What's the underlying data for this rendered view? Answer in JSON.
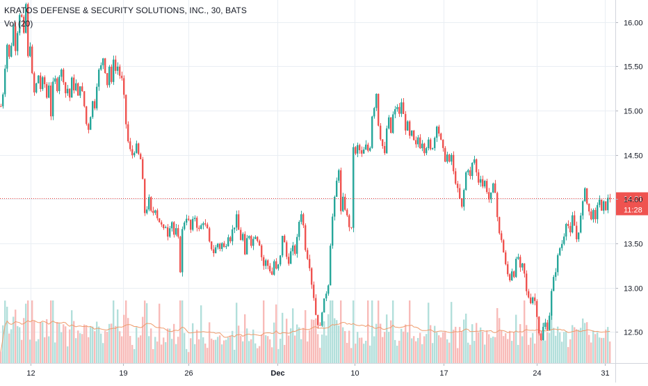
{
  "header": {
    "title": "KRATOS DEFENSE & SECURITY SOLUTIONS, INC., 30, BATS",
    "volume_label": "Vol (20)"
  },
  "colors": {
    "up": "#26a69a",
    "down": "#ef5350",
    "up_volume": "#b2dfdb",
    "down_volume": "#f8bbb9",
    "volume_ma": "#ef9a6a",
    "grid": "#e9eef3",
    "price_line": "#e53935"
  },
  "chart_data": {
    "type": "candlestick",
    "interval": "30",
    "price_axis": {
      "ticks": [
        "16.00",
        "15.50",
        "15.00",
        "14.50",
        "14.00",
        "13.50",
        "13.00",
        "12.50"
      ],
      "range": [
        12.15,
        16.25
      ]
    },
    "x_axis": {
      "ticks": [
        "12",
        "19",
        "26",
        "Dec",
        "10",
        "17",
        "24",
        "31"
      ]
    },
    "last_price": {
      "value": 14.01,
      "label": "14.01",
      "countdown": "11:28"
    },
    "grid": true,
    "legend_placement": "top-left",
    "volume": {
      "ma_period": 20,
      "relative_scale": true
    },
    "price_path": [
      [
        0,
        15.05
      ],
      [
        3,
        15.2
      ],
      [
        6,
        15.5
      ],
      [
        9,
        15.75
      ],
      [
        12,
        15.6
      ],
      [
        15,
        15.75
      ],
      [
        18,
        15.95
      ],
      [
        21,
        15.7
      ],
      [
        24,
        15.9
      ],
      [
        27,
        16.1
      ],
      [
        30,
        16.05
      ],
      [
        33,
        15.85
      ],
      [
        36,
        16.2
      ],
      [
        39,
        15.6
      ],
      [
        42,
        15.75
      ],
      [
        45,
        15.4
      ],
      [
        48,
        15.2
      ],
      [
        51,
        15.3
      ],
      [
        54,
        15.4
      ],
      [
        57,
        15.25
      ],
      [
        60,
        15.35
      ],
      [
        63,
        15.3
      ],
      [
        66,
        15.15
      ],
      [
        69,
        15.3
      ],
      [
        72,
        14.95
      ],
      [
        75,
        15.3
      ],
      [
        78,
        15.35
      ],
      [
        81,
        15.25
      ],
      [
        84,
        15.4
      ],
      [
        87,
        15.45
      ],
      [
        90,
        15.35
      ],
      [
        93,
        15.2
      ],
      [
        96,
        15.25
      ],
      [
        99,
        15.15
      ],
      [
        102,
        15.35
      ],
      [
        105,
        15.25
      ],
      [
        108,
        15.3
      ],
      [
        111,
        15.15
      ],
      [
        114,
        15.3
      ],
      [
        117,
        15.2
      ],
      [
        120,
        15.05
      ],
      [
        123,
        14.85
      ],
      [
        126,
        14.8
      ],
      [
        129,
        14.95
      ],
      [
        132,
        15.1
      ],
      [
        135,
        15.05
      ],
      [
        138,
        15.3
      ],
      [
        141,
        15.45
      ],
      [
        144,
        15.5
      ],
      [
        147,
        15.6
      ],
      [
        150,
        15.45
      ],
      [
        153,
        15.3
      ],
      [
        156,
        15.5
      ],
      [
        159,
        15.3
      ],
      [
        162,
        15.6
      ],
      [
        165,
        15.45
      ],
      [
        168,
        15.5
      ],
      [
        171,
        15.4
      ],
      [
        174,
        15.35
      ],
      [
        177,
        15.15
      ],
      [
        180,
        14.85
      ],
      [
        183,
        14.65
      ],
      [
        186,
        14.55
      ],
      [
        189,
        14.5
      ],
      [
        192,
        14.55
      ],
      [
        195,
        14.6
      ],
      [
        198,
        14.5
      ],
      [
        201,
        14.45
      ],
      [
        204,
        14.2
      ],
      [
        207,
        13.85
      ],
      [
        210,
        13.9
      ],
      [
        213,
        14.0
      ],
      [
        216,
        13.85
      ],
      [
        219,
        13.85
      ],
      [
        222,
        13.9
      ],
      [
        225,
        13.8
      ],
      [
        228,
        13.75
      ],
      [
        231,
        13.7
      ],
      [
        234,
        13.65
      ],
      [
        237,
        13.7
      ],
      [
        240,
        13.6
      ],
      [
        243,
        13.7
      ],
      [
        246,
        13.75
      ],
      [
        249,
        13.6
      ],
      [
        252,
        13.65
      ],
      [
        255,
        13.55
      ],
      [
        258,
        13.2
      ],
      [
        261,
        13.65
      ],
      [
        264,
        13.75
      ],
      [
        267,
        13.8
      ],
      [
        270,
        13.75
      ],
      [
        273,
        13.65
      ],
      [
        276,
        13.75
      ],
      [
        279,
        13.8
      ],
      [
        282,
        13.7
      ],
      [
        285,
        13.65
      ],
      [
        288,
        13.7
      ],
      [
        291,
        13.75
      ],
      [
        294,
        13.7
      ],
      [
        297,
        13.65
      ],
      [
        300,
        13.5
      ],
      [
        303,
        13.45
      ],
      [
        306,
        13.4
      ],
      [
        309,
        13.45
      ],
      [
        312,
        13.5
      ],
      [
        315,
        13.45
      ],
      [
        318,
        13.5
      ],
      [
        321,
        13.45
      ],
      [
        324,
        13.5
      ],
      [
        327,
        13.6
      ],
      [
        330,
        13.55
      ],
      [
        333,
        13.65
      ],
      [
        336,
        13.7
      ],
      [
        339,
        13.8
      ],
      [
        342,
        13.65
      ],
      [
        345,
        13.55
      ],
      [
        348,
        13.6
      ],
      [
        351,
        13.35
      ],
      [
        354,
        13.55
      ],
      [
        357,
        13.6
      ],
      [
        360,
        13.5
      ],
      [
        363,
        13.55
      ],
      [
        366,
        13.6
      ],
      [
        369,
        13.55
      ],
      [
        372,
        13.5
      ],
      [
        375,
        13.35
      ],
      [
        378,
        13.25
      ],
      [
        381,
        13.3
      ],
      [
        384,
        13.25
      ],
      [
        387,
        13.2
      ],
      [
        390,
        13.15
      ],
      [
        393,
        13.3
      ],
      [
        396,
        13.2
      ],
      [
        399,
        13.25
      ],
      [
        402,
        13.35
      ],
      [
        405,
        13.6
      ],
      [
        408,
        13.5
      ],
      [
        411,
        13.35
      ],
      [
        414,
        13.3
      ],
      [
        417,
        13.4
      ],
      [
        420,
        13.45
      ],
      [
        423,
        13.4
      ],
      [
        426,
        13.55
      ],
      [
        429,
        13.75
      ],
      [
        432,
        13.85
      ],
      [
        435,
        13.7
      ],
      [
        438,
        13.45
      ],
      [
        441,
        13.35
      ],
      [
        444,
        13.25
      ],
      [
        447,
        13.05
      ],
      [
        450,
        12.9
      ],
      [
        453,
        12.7
      ],
      [
        456,
        12.6
      ],
      [
        459,
        12.55
      ],
      [
        462,
        12.75
      ],
      [
        465,
        12.85
      ],
      [
        468,
        12.95
      ],
      [
        471,
        13.05
      ],
      [
        474,
        13.5
      ],
      [
        477,
        13.8
      ],
      [
        480,
        14.0
      ],
      [
        483,
        14.2
      ],
      [
        486,
        14.35
      ],
      [
        489,
        13.85
      ],
      [
        492,
        14.0
      ],
      [
        495,
        13.9
      ],
      [
        498,
        13.8
      ],
      [
        501,
        13.7
      ],
      [
        504,
        13.65
      ],
      [
        507,
        14.6
      ],
      [
        510,
        14.5
      ],
      [
        513,
        14.6
      ],
      [
        516,
        14.55
      ],
      [
        519,
        14.5
      ],
      [
        522,
        14.55
      ],
      [
        525,
        14.6
      ],
      [
        528,
        14.55
      ],
      [
        531,
        14.6
      ],
      [
        534,
        14.95
      ],
      [
        537,
        15.05
      ],
      [
        540,
        15.2
      ],
      [
        543,
        14.85
      ],
      [
        546,
        14.7
      ],
      [
        549,
        14.6
      ],
      [
        552,
        14.5
      ],
      [
        555,
        14.8
      ],
      [
        558,
        14.9
      ],
      [
        561,
        14.75
      ],
      [
        564,
        14.95
      ],
      [
        567,
        15.0
      ],
      [
        570,
        15.05
      ],
      [
        573,
        14.95
      ],
      [
        576,
        15.1
      ],
      [
        579,
        14.95
      ],
      [
        582,
        14.8
      ],
      [
        585,
        14.85
      ],
      [
        588,
        14.7
      ],
      [
        591,
        14.75
      ],
      [
        594,
        14.65
      ],
      [
        597,
        14.6
      ],
      [
        600,
        14.7
      ],
      [
        603,
        14.6
      ],
      [
        606,
        14.65
      ],
      [
        609,
        14.55
      ],
      [
        612,
        14.6
      ],
      [
        615,
        14.65
      ],
      [
        618,
        14.55
      ],
      [
        621,
        14.6
      ],
      [
        624,
        14.7
      ],
      [
        627,
        14.85
      ],
      [
        630,
        14.75
      ],
      [
        633,
        14.65
      ],
      [
        636,
        14.55
      ],
      [
        639,
        14.45
      ],
      [
        642,
        14.5
      ],
      [
        645,
        14.4
      ],
      [
        648,
        14.5
      ],
      [
        651,
        14.3
      ],
      [
        654,
        14.2
      ],
      [
        657,
        14.1
      ],
      [
        660,
        14.0
      ],
      [
        663,
        13.9
      ],
      [
        666,
        14.1
      ],
      [
        669,
        14.3
      ],
      [
        672,
        14.35
      ],
      [
        675,
        14.25
      ],
      [
        678,
        14.4
      ],
      [
        681,
        14.45
      ],
      [
        684,
        14.3
      ],
      [
        687,
        14.2
      ],
      [
        690,
        14.25
      ],
      [
        693,
        14.15
      ],
      [
        696,
        14.2
      ],
      [
        699,
        14.1
      ],
      [
        702,
        14.0
      ],
      [
        705,
        14.05
      ],
      [
        708,
        14.15
      ],
      [
        711,
        14.1
      ],
      [
        714,
        13.8
      ],
      [
        717,
        13.6
      ],
      [
        720,
        13.55
      ],
      [
        723,
        13.4
      ],
      [
        726,
        13.25
      ],
      [
        729,
        13.15
      ],
      [
        732,
        13.1
      ],
      [
        735,
        13.2
      ],
      [
        738,
        13.15
      ],
      [
        741,
        13.3
      ],
      [
        744,
        13.35
      ],
      [
        747,
        13.2
      ],
      [
        750,
        13.25
      ],
      [
        753,
        13.15
      ],
      [
        756,
        12.95
      ],
      [
        759,
        12.9
      ],
      [
        762,
        12.85
      ],
      [
        765,
        12.9
      ],
      [
        768,
        12.85
      ],
      [
        771,
        12.7
      ],
      [
        774,
        12.5
      ],
      [
        777,
        12.4
      ],
      [
        780,
        12.55
      ],
      [
        783,
        12.6
      ],
      [
        786,
        12.55
      ],
      [
        789,
        12.7
      ],
      [
        792,
        12.95
      ],
      [
        795,
        13.1
      ],
      [
        798,
        13.2
      ],
      [
        801,
        13.35
      ],
      [
        804,
        13.45
      ],
      [
        807,
        13.5
      ],
      [
        810,
        13.6
      ],
      [
        813,
        13.75
      ],
      [
        816,
        13.7
      ],
      [
        819,
        13.6
      ],
      [
        822,
        13.8
      ],
      [
        825,
        13.7
      ],
      [
        828,
        13.55
      ],
      [
        831,
        13.65
      ],
      [
        834,
        13.8
      ],
      [
        837,
        13.95
      ],
      [
        840,
        14.15
      ],
      [
        843,
        13.95
      ],
      [
        846,
        13.85
      ],
      [
        849,
        13.8
      ],
      [
        852,
        13.85
      ],
      [
        855,
        13.75
      ],
      [
        858,
        13.95
      ],
      [
        861,
        14.0
      ],
      [
        864,
        13.85
      ],
      [
        867,
        13.95
      ],
      [
        870,
        13.9
      ],
      [
        873,
        14.0
      ],
      [
        876,
        14.01
      ]
    ]
  }
}
